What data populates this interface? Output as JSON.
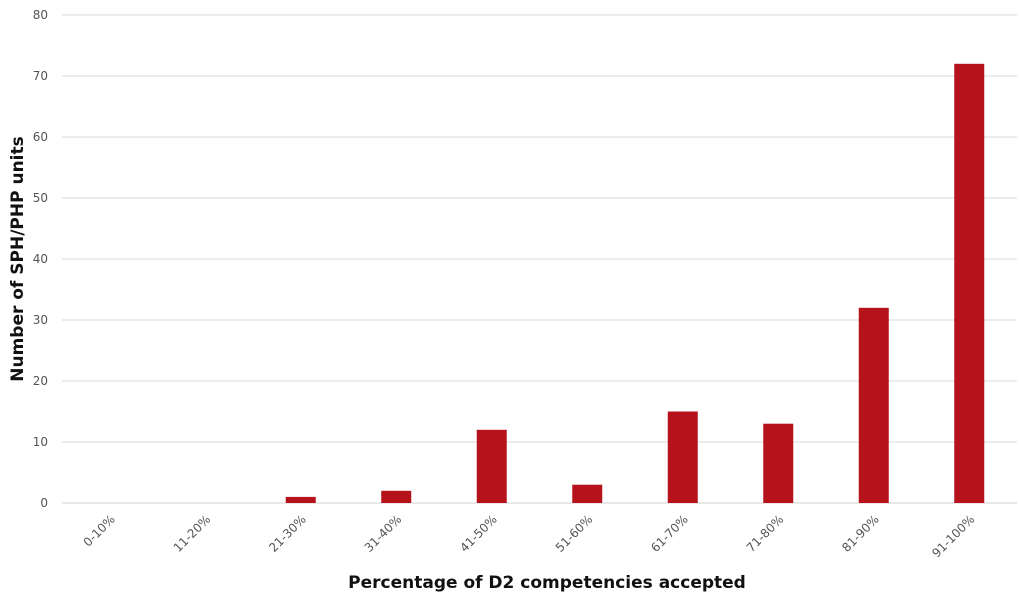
{
  "chart_data": {
    "type": "bar",
    "categories": [
      "0-10%",
      "11-20%",
      "21-30%",
      "31-40%",
      "41-50%",
      "51-60%",
      "61-70%",
      "71-80%",
      "81-90%",
      "91-100%"
    ],
    "values": [
      0,
      0,
      1,
      2,
      12,
      3,
      15,
      13,
      32,
      72
    ],
    "title": "",
    "xlabel": "Percentage of D2 competencies accepted",
    "ylabel": "Number of SPH/PHP units",
    "ylim": [
      0,
      80
    ],
    "yticks": [
      0,
      10,
      20,
      30,
      40,
      50,
      60,
      70,
      80
    ],
    "grid": true,
    "legend": "none",
    "bar_color": "#b5121b"
  }
}
